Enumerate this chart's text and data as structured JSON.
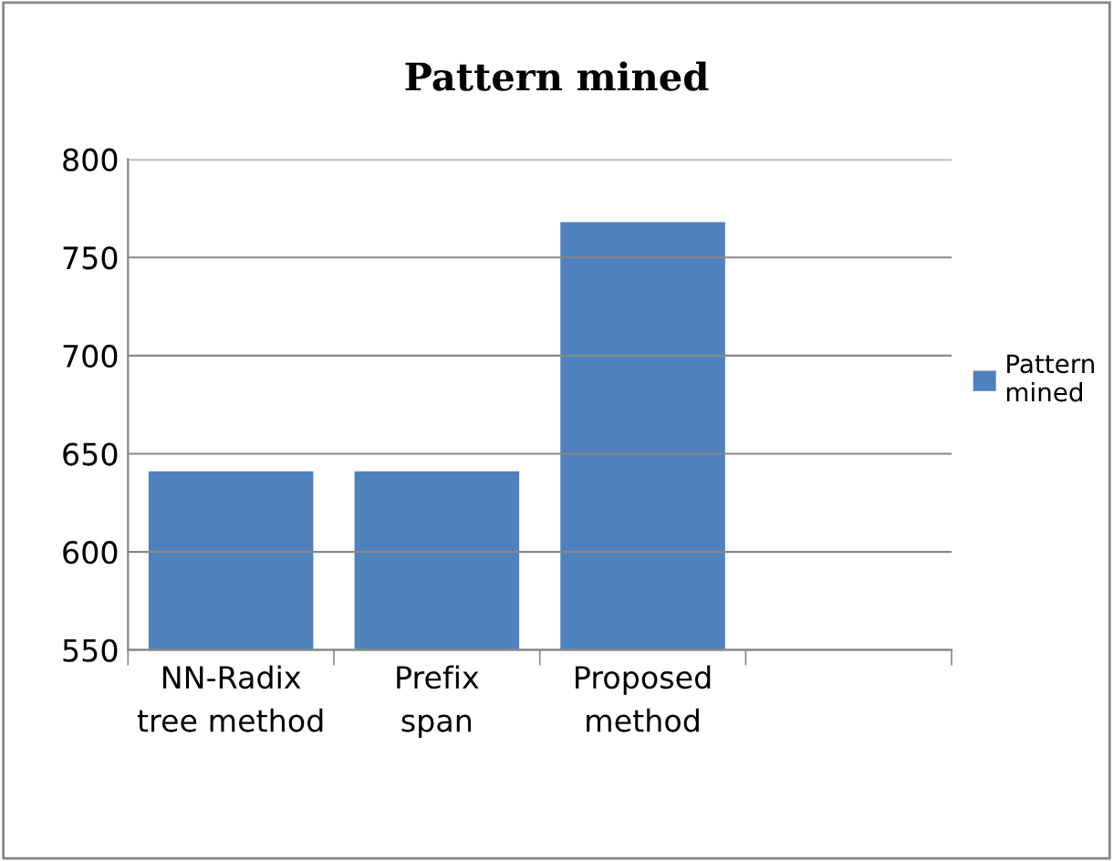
{
  "chart_data": {
    "type": "bar",
    "title": "Pattern mined",
    "categories": [
      "NN-Radix tree method",
      "Prefix span",
      "Proposed method",
      null
    ],
    "series": [
      {
        "name": "Pattern mined",
        "color": "#4f81bd",
        "values": [
          641,
          641,
          768,
          null
        ]
      }
    ],
    "ylim": [
      550,
      800
    ],
    "yticks": [
      550,
      600,
      650,
      700,
      750,
      800
    ],
    "grid": "y",
    "legend": "right"
  }
}
